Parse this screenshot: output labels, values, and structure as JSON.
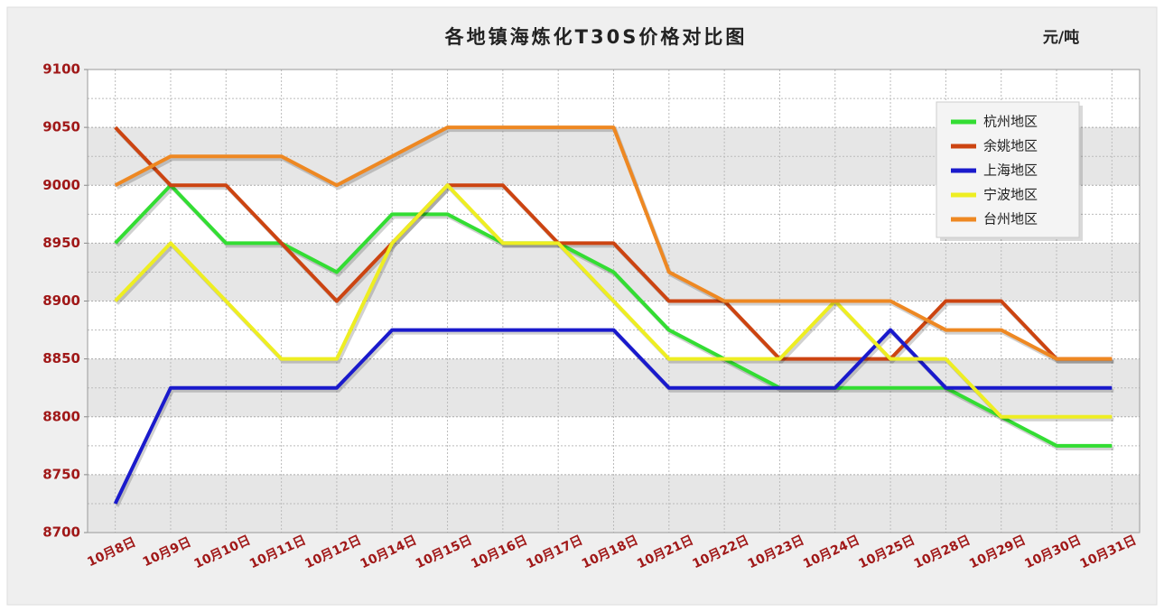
{
  "chart_data": {
    "type": "line",
    "title": "各地镇海炼化T30S价格对比图",
    "unit_label": "元/吨",
    "categories": [
      "10月8日",
      "10月9日",
      "10月10日",
      "10月11日",
      "10月12日",
      "10月14日",
      "10月15日",
      "10月16日",
      "10月17日",
      "10月18日",
      "10月21日",
      "10月22日",
      "10月23日",
      "10月24日",
      "10月25日",
      "10月28日",
      "10月29日",
      "10月30日",
      "10月31日"
    ],
    "series": [
      {
        "name": "杭州地区",
        "color": "#33dd33",
        "values": [
          8950,
          9000,
          8950,
          8950,
          8925,
          8975,
          8975,
          8950,
          8950,
          8925,
          8875,
          8850,
          8825,
          8825,
          8825,
          8825,
          8800,
          8775,
          8775
        ]
      },
      {
        "name": "余姚地区",
        "color": "#cc4411",
        "values": [
          9050,
          9000,
          9000,
          8950,
          8900,
          8950,
          9000,
          9000,
          8950,
          8950,
          8900,
          8900,
          8850,
          8850,
          8850,
          8900,
          8900,
          8850,
          8850
        ]
      },
      {
        "name": "上海地区",
        "color": "#1a1acc",
        "values": [
          8725,
          8825,
          8825,
          8825,
          8825,
          8875,
          8875,
          8875,
          8875,
          8875,
          8825,
          8825,
          8825,
          8825,
          8875,
          8825,
          8825,
          8825,
          8825
        ]
      },
      {
        "name": "宁波地区",
        "color": "#eeee22",
        "values": [
          8900,
          8950,
          8900,
          8850,
          8850,
          8950,
          9000,
          8950,
          8950,
          8900,
          8850,
          8850,
          8850,
          8900,
          8850,
          8850,
          8800,
          8800,
          8800
        ]
      },
      {
        "name": "台州地区",
        "color": "#ee8822",
        "values": [
          9000,
          9025,
          9025,
          9025,
          9000,
          9025,
          9050,
          9050,
          9050,
          9050,
          8925,
          8900,
          8900,
          8900,
          8900,
          8875,
          8875,
          8850,
          8850
        ]
      }
    ],
    "ylim": [
      8700,
      9100
    ],
    "yticks": [
      8700,
      8750,
      8800,
      8850,
      8900,
      8950,
      9000,
      9050,
      9100
    ],
    "grid": true,
    "legend": "top-right"
  }
}
